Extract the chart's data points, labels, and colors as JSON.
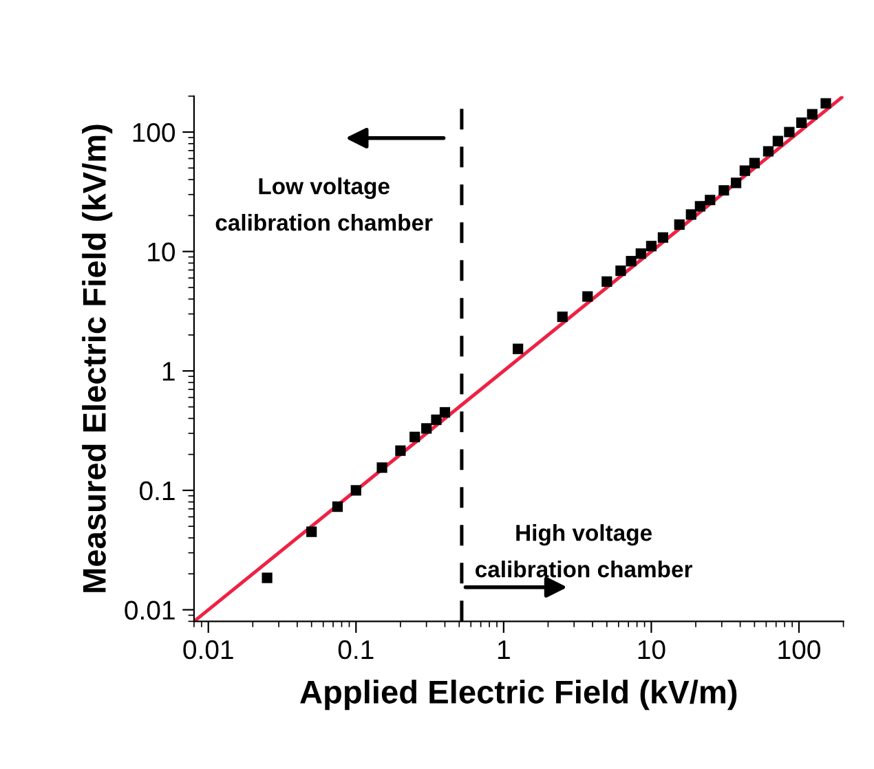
{
  "chart_data": {
    "type": "scatter",
    "xlabel": "Applied Electric Field (kV/m)",
    "ylabel": "Measured Electric Field (kV/m)",
    "log": "xy",
    "xlim": [
      0.008,
      200
    ],
    "ylim": [
      0.008,
      200
    ],
    "xticks": [
      0.01,
      0.1,
      1,
      10,
      100
    ],
    "yticks": [
      0.01,
      0.1,
      1,
      10,
      100
    ],
    "grid": false,
    "legend": false,
    "series": [
      {
        "color": "#000000",
        "marker": "square",
        "x": [
          0.025,
          0.05,
          0.075,
          0.1,
          0.15,
          0.2,
          0.25,
          0.3,
          0.35,
          0.4,
          1.25,
          2.5,
          3.7,
          5,
          6.2,
          7.3,
          8.5,
          10,
          12,
          15.5,
          18.6,
          21.4,
          25,
          31,
          37.5,
          43,
          50,
          62,
          72,
          86,
          104,
          123,
          152
        ],
        "values": [
          0.0185,
          0.045,
          0.073,
          0.1,
          0.155,
          0.215,
          0.28,
          0.33,
          0.39,
          0.45,
          1.53,
          2.84,
          4.2,
          5.6,
          6.9,
          8.3,
          9.6,
          11.1,
          13.1,
          16.8,
          20.4,
          23.9,
          27,
          32.5,
          37.5,
          47.5,
          55,
          69,
          84,
          100,
          120,
          141,
          174
        ]
      },
      {
        "type": "line",
        "color": "#ee2244",
        "marker": "none",
        "line_style": "solid",
        "x": [
          0.008,
          200
        ],
        "values": [
          0.008,
          200
        ]
      }
    ],
    "ref_lines": [
      {
        "axis": "x",
        "value": 0.52,
        "color": "#000000",
        "line_style": "dashed"
      }
    ],
    "annotations": [
      "Low voltage\ncalibration chamber",
      "High voltage\ncalibration chamber"
    ]
  }
}
